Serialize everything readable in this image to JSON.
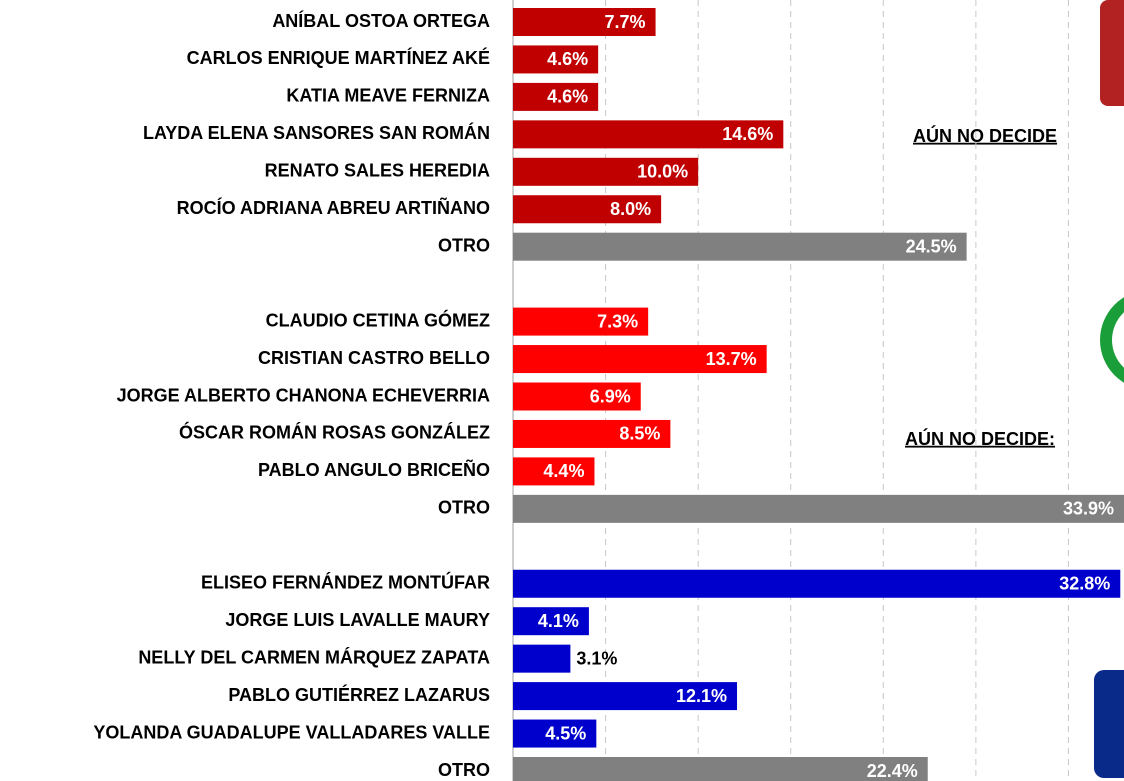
{
  "chart_data": {
    "type": "barh",
    "categories": [
      "ANÍBAL OSTOA ORTEGA",
      "CARLOS ENRIQUE MARTÍNEZ AKÉ",
      "KATIA MEAVE FERNIZA",
      "LAYDA ELENA SANSORES SAN ROMÁN",
      "RENATO SALES HEREDIA",
      "ROCÍO ADRIANA ABREU ARTIÑANO",
      "OTRO",
      null,
      "CLAUDIO CETINA GÓMEZ",
      "CRISTIAN CASTRO BELLO",
      "JORGE ALBERTO CHANONA ECHEVERRIA",
      "ÓSCAR ROMÁN ROSAS GONZÁLEZ",
      "PABLO ANGULO BRICEÑO",
      "OTRO",
      null,
      "ELISEO FERNÁNDEZ MONTÚFAR",
      "JORGE LUIS LAVALLE MAURY",
      "NELLY DEL CARMEN MÁRQUEZ ZAPATA",
      "PABLO GUTIÉRREZ LAZARUS",
      "YOLANDA GUADALUPE VALLADARES VALLE",
      "OTRO"
    ],
    "values": [
      7.7,
      4.6,
      4.6,
      14.6,
      10.0,
      8.0,
      24.5,
      null,
      7.3,
      13.7,
      6.9,
      8.5,
      4.4,
      33.9,
      null,
      32.8,
      4.1,
      3.1,
      12.1,
      4.5,
      22.4
    ],
    "value_labels": [
      "7.7%",
      "4.6%",
      "4.6%",
      "14.6%",
      "10.0%",
      "8.0%",
      "24.5%",
      null,
      "7.3%",
      "13.7%",
      "6.9%",
      "8.5%",
      "4.4%",
      "33.9%",
      null,
      "32.8%",
      "4.1%",
      "3.1%",
      "12.1%",
      "4.5%",
      "22.4%"
    ],
    "colors": [
      "#c00000",
      "#c00000",
      "#c00000",
      "#c00000",
      "#c00000",
      "#c00000",
      "#808080",
      null,
      "#ff0000",
      "#ff0000",
      "#ff0000",
      "#ff0000",
      "#ff0000",
      "#808080",
      null,
      "#0000cc",
      "#0000cc",
      "#0000cc",
      "#0000cc",
      "#0000cc",
      "#808080"
    ],
    "xlim": [
      0,
      33
    ],
    "xticks": [
      0,
      5,
      10,
      15,
      20,
      25,
      30
    ],
    "grid": true,
    "annotations": [
      "AÚN NO DECIDE",
      "AÚN NO DECIDE:"
    ]
  }
}
